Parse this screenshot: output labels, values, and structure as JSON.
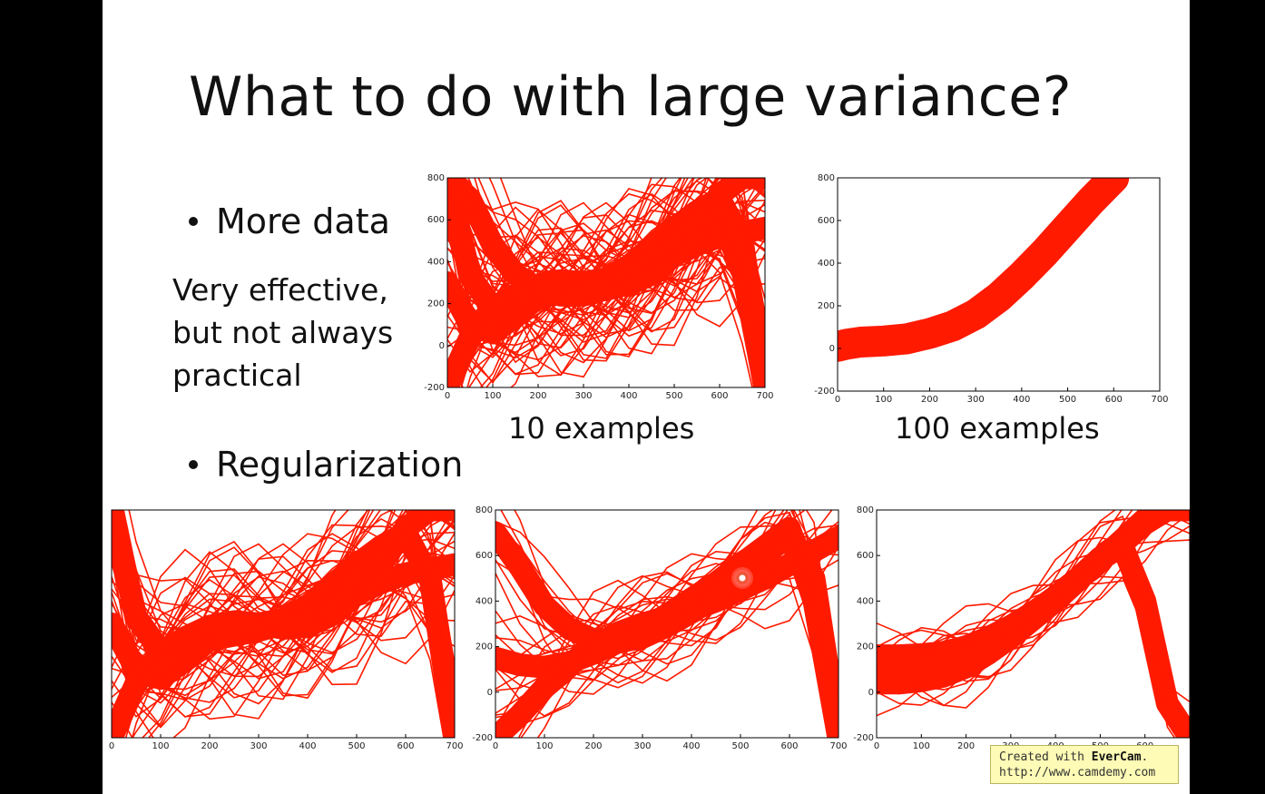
{
  "slide": {
    "title": "What to do with large variance?",
    "bullet_more_data": "More data",
    "note_lines": [
      "Very effective,",
      "but not always",
      "practical"
    ],
    "caption_10": "10 examples",
    "caption_100": "100 examples",
    "bullet_regularization": "Regularization"
  },
  "watermark": {
    "line1_prefix": "Created with ",
    "line1_brand": "EverCam",
    "line1_suffix": ".",
    "line2": "http://www.camdemy.com"
  },
  "colors": {
    "curve": "#ff1a00",
    "background": "#ffffff",
    "letterbox": "#000000"
  },
  "chart_data": [
    {
      "type": "line",
      "caption": "10 examples",
      "xlim": [
        0,
        700
      ],
      "ylim": [
        -200,
        800
      ],
      "xticks": [
        0,
        100,
        200,
        300,
        400,
        500,
        600,
        700
      ],
      "yticks": [
        -200,
        0,
        200,
        400,
        600,
        800
      ],
      "series": [
        {
          "x": [
            0,
            50,
            100,
            150,
            200,
            250,
            300,
            350,
            400,
            450,
            500,
            550,
            600,
            650,
            700
          ],
          "y": [
            800,
            330,
            180,
            200,
            230,
            250,
            270,
            300,
            340,
            380,
            430,
            480,
            520,
            540,
            560
          ]
        },
        {
          "x": [
            0,
            50,
            100,
            150,
            200,
            250,
            300,
            350,
            400,
            450,
            500,
            550,
            600,
            650,
            700
          ],
          "y": [
            300,
            100,
            60,
            140,
            230,
            280,
            300,
            320,
            380,
            470,
            560,
            640,
            700,
            500,
            -200
          ]
        },
        {
          "x": [
            0,
            50,
            100,
            150,
            200,
            250,
            300,
            350,
            400,
            450,
            500,
            550,
            600,
            650,
            700
          ],
          "y": [
            -200,
            40,
            160,
            240,
            290,
            310,
            300,
            280,
            290,
            340,
            430,
            560,
            720,
            800,
            800
          ]
        },
        {
          "x": [
            0,
            50,
            100,
            150,
            200,
            250,
            300,
            350,
            400,
            450,
            500,
            550,
            600,
            650,
            700
          ],
          "y": [
            800,
            700,
            480,
            340,
            270,
            240,
            240,
            270,
            320,
            390,
            470,
            560,
            620,
            360,
            -200
          ]
        }
      ]
    },
    {
      "type": "line",
      "caption": "100 examples",
      "xlim": [
        0,
        700
      ],
      "ylim": [
        -200,
        800
      ],
      "xticks": [
        0,
        100,
        200,
        300,
        400,
        500,
        600,
        700
      ],
      "yticks": [
        -200,
        0,
        200,
        400,
        600,
        800
      ],
      "series": [
        {
          "x": [
            0,
            20,
            50,
            100,
            150,
            200,
            250,
            300,
            350,
            400,
            450,
            500,
            550,
            600
          ],
          "y": [
            10,
            20,
            30,
            35,
            45,
            70,
            105,
            160,
            240,
            340,
            450,
            570,
            690,
            800
          ]
        }
      ]
    },
    {
      "type": "line",
      "xlim": [
        0,
        700
      ],
      "ylim": [
        -200,
        800
      ],
      "xticks": [
        0,
        100,
        200,
        300,
        400,
        500,
        600,
        700
      ],
      "series": [
        {
          "x": [
            0,
            50,
            100,
            150,
            200,
            250,
            300,
            350,
            400,
            450,
            500,
            550,
            600,
            650,
            700
          ],
          "y": [
            800,
            330,
            180,
            200,
            230,
            250,
            270,
            300,
            340,
            380,
            430,
            480,
            520,
            540,
            560
          ]
        },
        {
          "x": [
            0,
            50,
            100,
            150,
            200,
            250,
            300,
            350,
            400,
            450,
            500,
            550,
            600,
            650,
            700
          ],
          "y": [
            300,
            100,
            60,
            140,
            230,
            280,
            300,
            320,
            380,
            470,
            560,
            640,
            700,
            500,
            -200
          ]
        },
        {
          "x": [
            0,
            50,
            100,
            150,
            200,
            250,
            300,
            350,
            400,
            450,
            500,
            550,
            600,
            650,
            700
          ],
          "y": [
            -200,
            40,
            160,
            240,
            290,
            310,
            300,
            280,
            290,
            340,
            430,
            560,
            720,
            800,
            800
          ]
        }
      ]
    },
    {
      "type": "line",
      "xlim": [
        0,
        700
      ],
      "ylim": [
        -200,
        800
      ],
      "xticks": [
        0,
        100,
        200,
        300,
        400,
        500,
        600,
        700
      ],
      "yticks": [
        -200,
        0,
        200,
        400,
        600,
        800
      ],
      "series": [
        {
          "x": [
            0,
            50,
            100,
            150,
            200,
            250,
            300,
            350,
            400,
            450,
            500,
            550,
            600,
            650,
            700
          ],
          "y": [
            700,
            550,
            380,
            280,
            230,
            220,
            240,
            290,
            350,
            420,
            500,
            600,
            700,
            500,
            -200
          ]
        },
        {
          "x": [
            0,
            50,
            100,
            150,
            200,
            250,
            300,
            350,
            400,
            450,
            500,
            550,
            600,
            650,
            700
          ],
          "y": [
            150,
            120,
            110,
            130,
            170,
            220,
            280,
            340,
            410,
            480,
            560,
            640,
            720,
            400,
            -200
          ]
        },
        {
          "x": [
            0,
            50,
            100,
            150,
            200,
            250,
            300,
            350,
            400,
            450,
            500,
            550,
            600,
            650,
            700
          ],
          "y": [
            -200,
            -100,
            20,
            120,
            200,
            260,
            300,
            330,
            360,
            400,
            450,
            500,
            560,
            620,
            680
          ]
        }
      ]
    },
    {
      "type": "line",
      "xlim": [
        0,
        700
      ],
      "ylim": [
        -200,
        800
      ],
      "xticks": [
        0,
        100,
        200,
        300,
        400,
        500,
        600
      ],
      "yticks": [
        -200,
        0,
        200,
        400,
        600,
        800
      ],
      "series": [
        {
          "x": [
            0,
            50,
            100,
            150,
            200,
            250,
            300,
            350,
            400,
            450,
            500,
            550,
            600,
            650,
            700
          ],
          "y": [
            160,
            160,
            165,
            175,
            200,
            240,
            290,
            350,
            420,
            500,
            580,
            660,
            740,
            800,
            800
          ]
        },
        {
          "x": [
            0,
            50,
            100,
            150,
            200,
            250,
            300,
            350,
            400,
            450,
            500,
            550,
            600,
            650,
            700
          ],
          "y": [
            40,
            40,
            50,
            70,
            110,
            170,
            240,
            320,
            400,
            490,
            580,
            670,
            760,
            800,
            800
          ]
        },
        {
          "x": [
            0,
            50,
            100,
            150,
            200,
            250,
            300,
            350,
            400,
            450,
            500,
            550,
            600,
            650,
            700
          ],
          "y": [
            100,
            100,
            105,
            120,
            150,
            200,
            260,
            330,
            410,
            500,
            590,
            640,
            400,
            -50,
            -200
          ]
        }
      ]
    }
  ]
}
